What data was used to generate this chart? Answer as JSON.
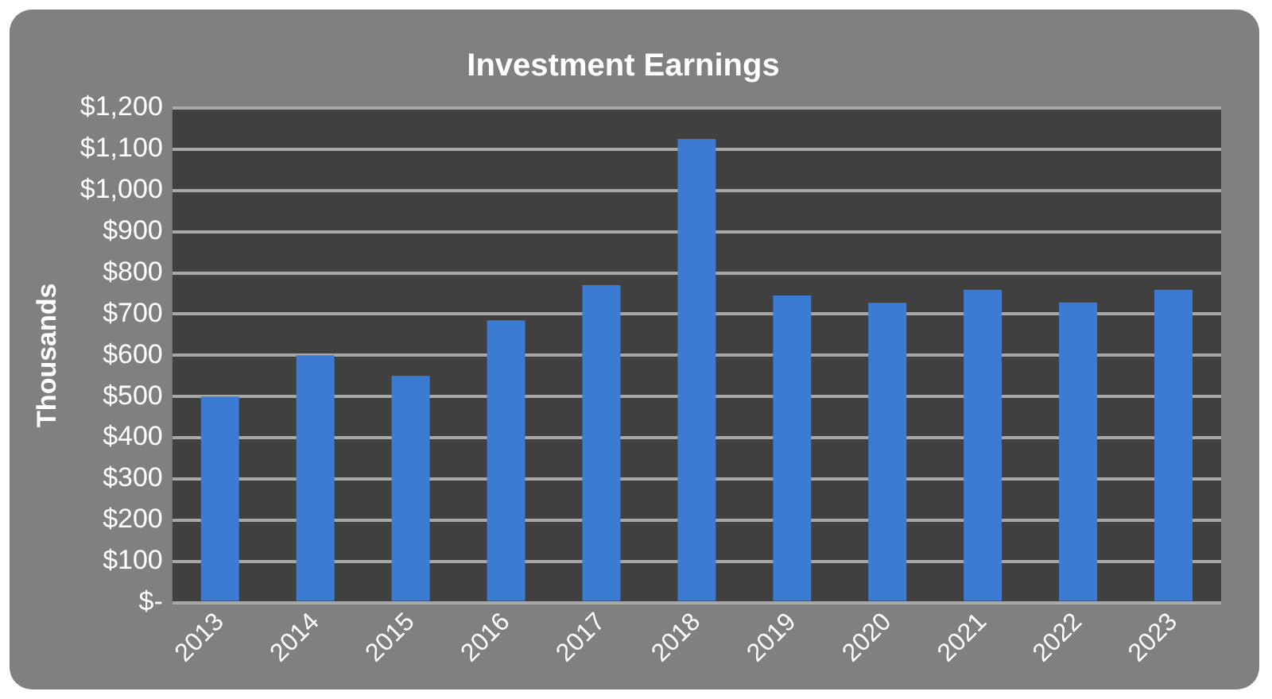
{
  "chart_data": {
    "type": "bar",
    "title": "Investment Earnings",
    "ylabel": "Thousands",
    "categories": [
      "2013",
      "2014",
      "2015",
      "2016",
      "2017",
      "2018",
      "2019",
      "2020",
      "2021",
      "2022",
      "2023"
    ],
    "values": [
      500,
      600,
      550,
      685,
      770,
      1125,
      745,
      727,
      759,
      728,
      759
    ],
    "color": "#3b7bd4",
    "ylim": [
      0,
      1200
    ],
    "yticks": [
      {
        "value": 0,
        "label": "$-"
      },
      {
        "value": 100,
        "label": "$100"
      },
      {
        "value": 200,
        "label": "$200"
      },
      {
        "value": 300,
        "label": "$300"
      },
      {
        "value": 400,
        "label": "$400"
      },
      {
        "value": 500,
        "label": "$500"
      },
      {
        "value": 600,
        "label": "$600"
      },
      {
        "value": 700,
        "label": "$700"
      },
      {
        "value": 800,
        "label": "$800"
      },
      {
        "value": 900,
        "label": "$900"
      },
      {
        "value": 1000,
        "label": "$1,000"
      },
      {
        "value": 1100,
        "label": "$1,100"
      },
      {
        "value": 1200,
        "label": "$1,200"
      }
    ],
    "grid": "y",
    "legend": false
  }
}
